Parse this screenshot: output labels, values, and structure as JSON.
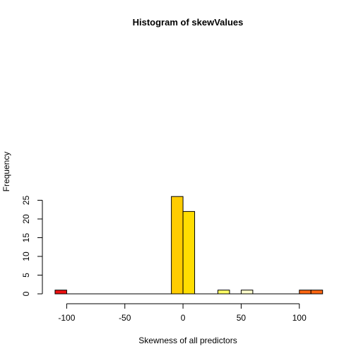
{
  "chart_data": {
    "type": "bar",
    "title": "Histogram of skewValues",
    "xlabel": "Skewness of all predictors",
    "ylabel": "Frequency",
    "xlim": [
      -113,
      122
    ],
    "ylim": [
      0,
      26
    ],
    "x_ticks": [
      -100,
      -50,
      0,
      50,
      100
    ],
    "y_ticks": [
      0,
      5,
      10,
      15,
      20,
      25
    ],
    "grid": false,
    "bins": [
      {
        "start": -110,
        "end": -100,
        "count": 1,
        "color": "#ee1111"
      },
      {
        "start": -10,
        "end": 0,
        "count": 26,
        "color": "#ffcc00"
      },
      {
        "start": 0,
        "end": 10,
        "count": 22,
        "color": "#ffdd00"
      },
      {
        "start": 30,
        "end": 40,
        "count": 1,
        "color": "#ffff66"
      },
      {
        "start": 50,
        "end": 60,
        "count": 1,
        "color": "#ffffcc"
      },
      {
        "start": 100,
        "end": 110,
        "count": 1,
        "color": "#ff6611"
      },
      {
        "start": 110,
        "end": 120,
        "count": 1,
        "color": "#ff6611"
      }
    ]
  }
}
